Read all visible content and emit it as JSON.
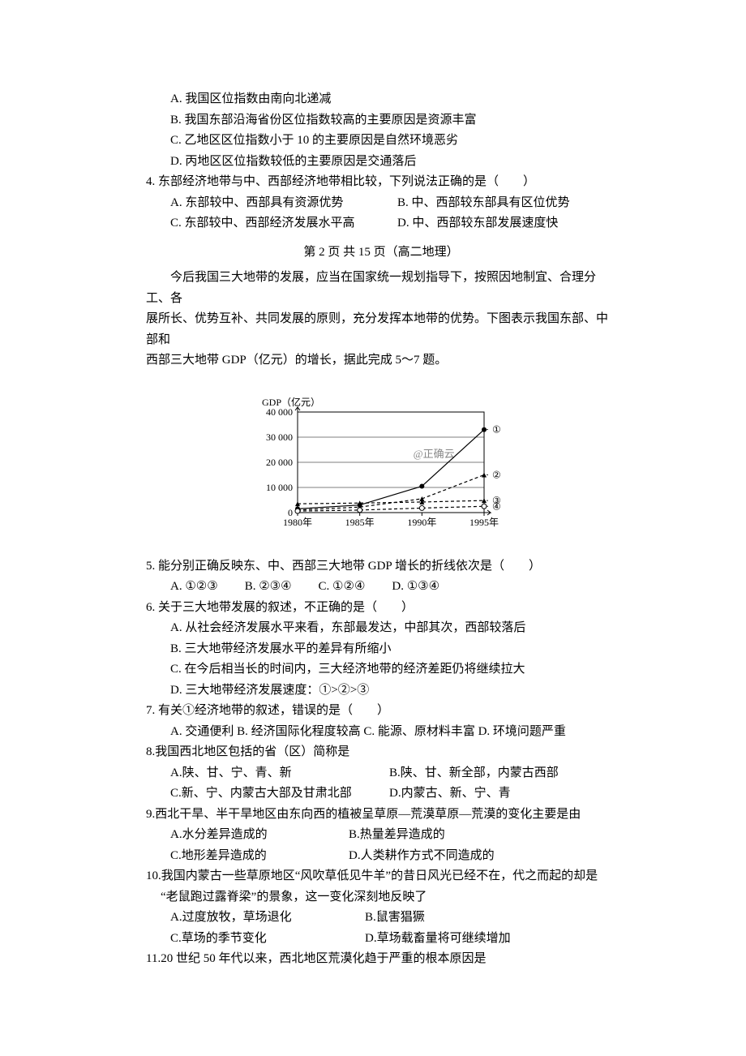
{
  "top_options": {
    "A": "A. 我国区位指数由南向北递减",
    "B": "B. 我国东部沿海省份区位指数较高的主要原因是资源丰富",
    "C": "C. 乙地区区位指数小于 10 的主要原因是自然环境恶劣",
    "D": "D. 丙地区区位指数较低的主要原因是交通落后"
  },
  "q4": {
    "stem": "4. 东部经济地带与中、西部经济地带相比较，下列说法正确的是（　　）",
    "A": "A. 东部较中、西部具有资源优势",
    "B": "B. 中、西部较东部具有区位优势",
    "C": "C. 东部较中、西部经济发展水平高",
    "D": "D. 中、西部较东部发展速度快"
  },
  "page_marker": "第 2 页 共 15 页（高二地理）",
  "passage": {
    "line1": "今后我国三大地带的发展，应当在国家统一规划指导下，按照因地制宜、合理分工、各",
    "line2": "展所长、优势互补、共同发展的原则，充分发挥本地带的优势。下图表示我国东部、中部和",
    "line3": "西部三大地带 GDP（亿元）的增长，据此完成 5～7 题。"
  },
  "chart": {
    "type": "line",
    "axis_color": "#000000",
    "grid_color": "#000000",
    "bg_color": "#ffffff",
    "y_label": "GDP（亿元）",
    "y_ticks": [
      0,
      10000,
      20000,
      30000,
      40000
    ],
    "y_tick_labels": [
      "0",
      "10 000",
      "20 000",
      "30 000",
      "40 000"
    ],
    "y_range": [
      0,
      40000
    ],
    "x_ticks": [
      "1980年",
      "1985年",
      "1990年",
      "1995年"
    ],
    "watermark": "@正确云",
    "series": [
      {
        "id": "①",
        "label_pos": "right",
        "marker": "circle-filled",
        "dash": "none",
        "values": [
          1500,
          3000,
          10500,
          33000
        ],
        "color": "#000000"
      },
      {
        "id": "②",
        "label_pos": "right",
        "marker": "triangle-filled",
        "dash": "dash",
        "values": [
          1000,
          2200,
          5500,
          15000
        ],
        "color": "#000000"
      },
      {
        "id": "③",
        "label_pos": "right",
        "marker": "triangle-filled",
        "dash": "dash",
        "values": [
          3500,
          3800,
          4200,
          4800
        ],
        "color": "#000000"
      },
      {
        "id": "④",
        "label_pos": "right",
        "marker": "circle-open",
        "dash": "dash",
        "values": [
          600,
          1000,
          1800,
          2500
        ],
        "color": "#000000"
      }
    ]
  },
  "q5": {
    "stem": "5. 能分别正确反映东、中、西部三大地带 GDP 增长的折线依次是（　　）",
    "A": "A. ①②③",
    "B": "B. ②③④",
    "C": "C. ①②④",
    "D": "D. ①③④"
  },
  "q6": {
    "stem": "6. 关于三大地带发展的叙述，不正确的是（　　）",
    "A": "A. 从社会经济发展水平来看，东部最发达，中部其次，西部较落后",
    "B": "B. 三大地带经济发展水平的差异有所缩小",
    "C": "C. 在今后相当长的时间内，三大经济地带的经济差距仍将继续拉大",
    "D": "D. 三大地带经济发展速度：①>②>③"
  },
  "q7": {
    "stem": "7. 有关①经济地带的叙述，错误的是（　　）",
    "opts": "A. 交通便利 B. 经济国际化程度较高  C. 能源、原材料丰富 D. 环境问题严重"
  },
  "q8": {
    "stem": "8.我国西北地区包括的省（区）简称是",
    "A": "A.陕、甘、宁、青、新",
    "B": "B.陕、甘、新全部，内蒙古西部",
    "C": "C.新、宁、内蒙古大部及甘肃北部",
    "D": "D.内蒙古、新、宁、青"
  },
  "q9": {
    "stem": "9.西北干旱、半干旱地区由东向西的植被呈草原—荒漠草原—荒漠的变化主要是由",
    "A": "A.水分差异造成的",
    "B": "B.热量差异造成的",
    "C": "C.地形差异造成的",
    "D": "D.人类耕作方式不同造成的"
  },
  "q10": {
    "stem1": "10.我国内蒙古一些草原地区“风吹草低见牛羊”的昔日风光已经不在，代之而起的却是",
    "stem2": "“老鼠跑过露脊梁”的景象，这一变化深刻地反映了",
    "A": "A.过度放牧，草场退化",
    "B": "B.鼠害猖獗",
    "C": "C.草场的季节变化",
    "D": "D.草场载畜量将可继续增加"
  },
  "q11": {
    "stem": "11.20 世纪 50 年代以来，西北地区荒漠化趋于严重的根本原因是"
  }
}
